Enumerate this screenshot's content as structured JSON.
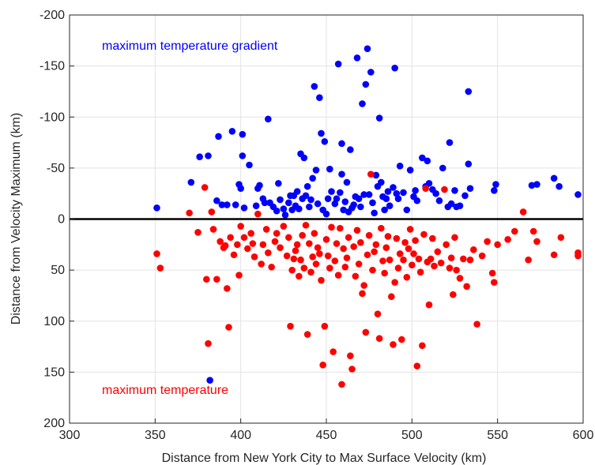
{
  "chart_data": {
    "type": "scatter",
    "xlabel": "Distance from New York City to Max Surface Velocity (km)",
    "ylabel": "Distance from Velocity Maximum (km)",
    "xlim": [
      300,
      600
    ],
    "ylim": [
      -200,
      200
    ],
    "y_inverted": true,
    "grid": true,
    "x_ticks": [
      "300",
      "350",
      "400",
      "450",
      "500",
      "550",
      "600"
    ],
    "y_ticks": [
      "-200",
      "-150",
      "-100",
      "-50",
      "0",
      "50",
      "100",
      "150",
      "200"
    ],
    "reference_line": {
      "y": 0,
      "color": "#000000"
    },
    "annotations": [
      {
        "text": "maximum temperature gradient",
        "color": "#0000ff"
      },
      {
        "text": "maximum temperature",
        "color": "#ff0000"
      }
    ],
    "series": [
      {
        "color": "#0000ff",
        "points": [
          [
            351,
            -11
          ],
          [
            371,
            -36
          ],
          [
            376,
            -61
          ],
          [
            381,
            -62
          ],
          [
            382,
            158
          ],
          [
            386,
            -18
          ],
          [
            387,
            -81
          ],
          [
            389,
            -14
          ],
          [
            392,
            -14
          ],
          [
            395,
            -86
          ],
          [
            397,
            -14
          ],
          [
            399,
            -34
          ],
          [
            400,
            -30
          ],
          [
            401,
            -83
          ],
          [
            401,
            -62
          ],
          [
            402,
            -11
          ],
          [
            405,
            -53
          ],
          [
            409,
            -13
          ],
          [
            410,
            -30
          ],
          [
            411,
            -33
          ],
          [
            413,
            -20
          ],
          [
            414,
            -16
          ],
          [
            416,
            -98
          ],
          [
            417,
            -16
          ],
          [
            419,
            -12
          ],
          [
            421,
            -8
          ],
          [
            422,
            -35
          ],
          [
            423,
            -19
          ],
          [
            425,
            -10
          ],
          [
            426,
            -4
          ],
          [
            428,
            -16
          ],
          [
            429,
            -23
          ],
          [
            430,
            -9
          ],
          [
            431,
            -23
          ],
          [
            432,
            -13
          ],
          [
            433,
            -27
          ],
          [
            434,
            -10
          ],
          [
            435,
            -64
          ],
          [
            436,
            -20
          ],
          [
            437,
            -60
          ],
          [
            438,
            -23
          ],
          [
            439,
            -32
          ],
          [
            440,
            -12
          ],
          [
            441,
            -19
          ],
          [
            442,
            -40
          ],
          [
            443,
            -130
          ],
          [
            444,
            -48
          ],
          [
            445,
            -15
          ],
          [
            446,
            -119
          ],
          [
            447,
            -84
          ],
          [
            448,
            -9
          ],
          [
            449,
            -76
          ],
          [
            450,
            -5
          ],
          [
            451,
            -20
          ],
          [
            452,
            -49
          ],
          [
            453,
            -27
          ],
          [
            455,
            -15
          ],
          [
            456,
            -20
          ],
          [
            457,
            -152
          ],
          [
            458,
            -26
          ],
          [
            459,
            -74
          ],
          [
            459,
            -44
          ],
          [
            460,
            -9
          ],
          [
            461,
            -17
          ],
          [
            462,
            -36
          ],
          [
            463,
            -7
          ],
          [
            464,
            -68
          ],
          [
            465,
            -11
          ],
          [
            466,
            -14
          ],
          [
            467,
            -22
          ],
          [
            468,
            -158
          ],
          [
            469,
            -20
          ],
          [
            470,
            -12
          ],
          [
            471,
            -113
          ],
          [
            472,
            -24
          ],
          [
            473,
            -132
          ],
          [
            474,
            -167
          ],
          [
            475,
            -24
          ],
          [
            476,
            -144
          ],
          [
            477,
            -16
          ],
          [
            478,
            -6
          ],
          [
            479,
            -43
          ],
          [
            480,
            -32
          ],
          [
            481,
            -99
          ],
          [
            482,
            -36
          ],
          [
            483,
            -22
          ],
          [
            484,
            -9
          ],
          [
            485,
            -20
          ],
          [
            486,
            -27
          ],
          [
            487,
            -13
          ],
          [
            489,
            -31
          ],
          [
            490,
            -148
          ],
          [
            491,
            -25
          ],
          [
            492,
            -20
          ],
          [
            493,
            -52
          ],
          [
            495,
            -26
          ],
          [
            497,
            -9
          ],
          [
            499,
            -48
          ],
          [
            501,
            -22
          ],
          [
            502,
            -28
          ],
          [
            503,
            -18
          ],
          [
            506,
            -60
          ],
          [
            508,
            -32
          ],
          [
            509,
            -57
          ],
          [
            510,
            -35
          ],
          [
            512,
            -29
          ],
          [
            514,
            -25
          ],
          [
            516,
            -18
          ],
          [
            518,
            -50
          ],
          [
            521,
            -12
          ],
          [
            522,
            -75
          ],
          [
            523,
            -15
          ],
          [
            525,
            -28
          ],
          [
            526,
            -12
          ],
          [
            528,
            -13
          ],
          [
            531,
            -23
          ],
          [
            533,
            -125
          ],
          [
            533,
            -54
          ],
          [
            534,
            -30
          ],
          [
            548,
            -28
          ],
          [
            549,
            -34
          ],
          [
            570,
            -33
          ],
          [
            573,
            -34
          ],
          [
            583,
            -40
          ],
          [
            586,
            -32
          ],
          [
            597,
            -24
          ]
        ]
      },
      {
        "color": "#ff0000",
        "points": [
          [
            351,
            34
          ],
          [
            353,
            48
          ],
          [
            370,
            -6
          ],
          [
            375,
            13
          ],
          [
            379,
            -31
          ],
          [
            380,
            59
          ],
          [
            381,
            122
          ],
          [
            383,
            -7
          ],
          [
            384,
            10
          ],
          [
            386,
            59
          ],
          [
            388,
            22
          ],
          [
            390,
            28
          ],
          [
            391,
            26
          ],
          [
            392,
            68
          ],
          [
            393,
            106
          ],
          [
            394,
            18
          ],
          [
            396,
            35
          ],
          [
            398,
            25
          ],
          [
            399,
            55
          ],
          [
            400,
            7
          ],
          [
            402,
            18
          ],
          [
            404,
            29
          ],
          [
            406,
            14
          ],
          [
            407,
            24
          ],
          [
            408,
            37
          ],
          [
            410,
            -5
          ],
          [
            412,
            44
          ],
          [
            413,
            25
          ],
          [
            415,
            10
          ],
          [
            416,
            33
          ],
          [
            418,
            47
          ],
          [
            420,
            22
          ],
          [
            421,
            14
          ],
          [
            423,
            28
          ],
          [
            425,
            7
          ],
          [
            427,
            36
          ],
          [
            428,
            18
          ],
          [
            429,
            105
          ],
          [
            430,
            50
          ],
          [
            431,
            39
          ],
          [
            432,
            31
          ],
          [
            433,
            25
          ],
          [
            434,
            56
          ],
          [
            435,
            40
          ],
          [
            436,
            16
          ],
          [
            437,
            48
          ],
          [
            438,
            6
          ],
          [
            439,
            113
          ],
          [
            440,
            24
          ],
          [
            441,
            52
          ],
          [
            442,
            37
          ],
          [
            443,
            14
          ],
          [
            444,
            44
          ],
          [
            445,
            28
          ],
          [
            446,
            34
          ],
          [
            447,
            60
          ],
          [
            448,
            143
          ],
          [
            449,
            105
          ],
          [
            450,
            20
          ],
          [
            451,
            36
          ],
          [
            452,
            48
          ],
          [
            453,
            8
          ],
          [
            454,
            130
          ],
          [
            455,
            41
          ],
          [
            456,
            24
          ],
          [
            457,
            55
          ],
          [
            458,
            9
          ],
          [
            459,
            162
          ],
          [
            460,
            29
          ],
          [
            461,
            47
          ],
          [
            462,
            38
          ],
          [
            463,
            18
          ],
          [
            464,
            134
          ],
          [
            465,
            147
          ],
          [
            466,
            27
          ],
          [
            467,
            56
          ],
          [
            468,
            11
          ],
          [
            469,
            44
          ],
          [
            470,
            23
          ],
          [
            471,
            73
          ],
          [
            472,
            65
          ],
          [
            473,
            111
          ],
          [
            474,
            35
          ],
          [
            475,
            16
          ],
          [
            476,
            -44
          ],
          [
            477,
            50
          ],
          [
            478,
            32
          ],
          [
            479,
            25
          ],
          [
            480,
            93
          ],
          [
            481,
            117
          ],
          [
            482,
            9
          ],
          [
            483,
            41
          ],
          [
            484,
            53
          ],
          [
            485,
            28
          ],
          [
            486,
            17
          ],
          [
            487,
            40
          ],
          [
            488,
            76
          ],
          [
            489,
            123
          ],
          [
            490,
            62
          ],
          [
            491,
            19
          ],
          [
            492,
            48
          ],
          [
            493,
            34
          ],
          [
            494,
            118
          ],
          [
            495,
            40
          ],
          [
            496,
            23
          ],
          [
            497,
            57
          ],
          [
            498,
            29
          ],
          [
            499,
            10
          ],
          [
            500,
            45
          ],
          [
            501,
            34
          ],
          [
            502,
            21
          ],
          [
            503,
            144
          ],
          [
            504,
            39
          ],
          [
            505,
            52
          ],
          [
            506,
            124
          ],
          [
            507,
            15
          ],
          [
            508,
            -30
          ],
          [
            509,
            42
          ],
          [
            510,
            84
          ],
          [
            511,
            39
          ],
          [
            512,
            19
          ],
          [
            513,
            46
          ],
          [
            515,
            32
          ],
          [
            517,
            43
          ],
          [
            519,
            -29
          ],
          [
            520,
            25
          ],
          [
            522,
            48
          ],
          [
            523,
            38
          ],
          [
            524,
            74
          ],
          [
            525,
            18
          ],
          [
            526,
            50
          ],
          [
            528,
            58
          ],
          [
            530,
            39
          ],
          [
            532,
            66
          ],
          [
            534,
            40
          ],
          [
            536,
            30
          ],
          [
            538,
            103
          ],
          [
            541,
            36
          ],
          [
            544,
            22
          ],
          [
            547,
            53
          ],
          [
            548,
            62
          ],
          [
            550,
            25
          ],
          [
            556,
            20
          ],
          [
            560,
            12
          ],
          [
            565,
            -7
          ],
          [
            568,
            40
          ],
          [
            571,
            12
          ],
          [
            573,
            22
          ],
          [
            583,
            35
          ],
          [
            587,
            18
          ],
          [
            597,
            33
          ],
          [
            597,
            36
          ]
        ]
      }
    ]
  }
}
